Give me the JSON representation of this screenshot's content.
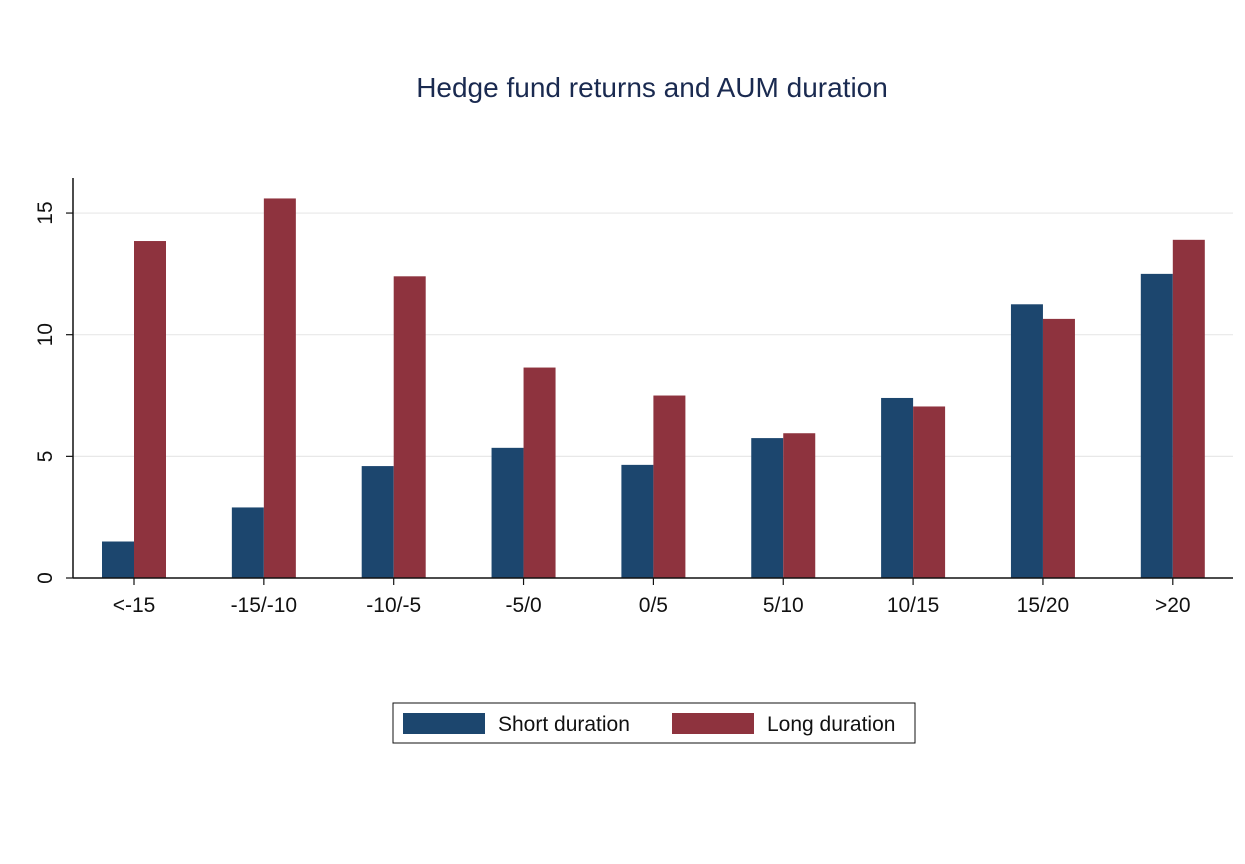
{
  "chart_data": {
    "type": "bar",
    "title": "Hedge fund returns and AUM duration",
    "xlabel": "",
    "ylabel": "",
    "categories": [
      "<-15",
      "-15/-10",
      "-10/-5",
      "-5/0",
      "0/5",
      "5/10",
      "10/15",
      "15/20",
      ">20"
    ],
    "series": [
      {
        "name": "Short duration",
        "color": "#1c466e",
        "values": [
          1.5,
          2.9,
          4.6,
          5.35,
          4.65,
          5.75,
          7.4,
          11.25,
          12.5
        ]
      },
      {
        "name": "Long duration",
        "color": "#8e333e",
        "values": [
          13.85,
          15.6,
          12.4,
          8.65,
          7.5,
          5.95,
          7.05,
          10.65,
          13.9
        ]
      }
    ],
    "yticks": [
      "0",
      "5",
      "10",
      "15"
    ],
    "ylim": [
      0,
      16.5
    ],
    "grid": true,
    "legend_position": "bottom"
  }
}
